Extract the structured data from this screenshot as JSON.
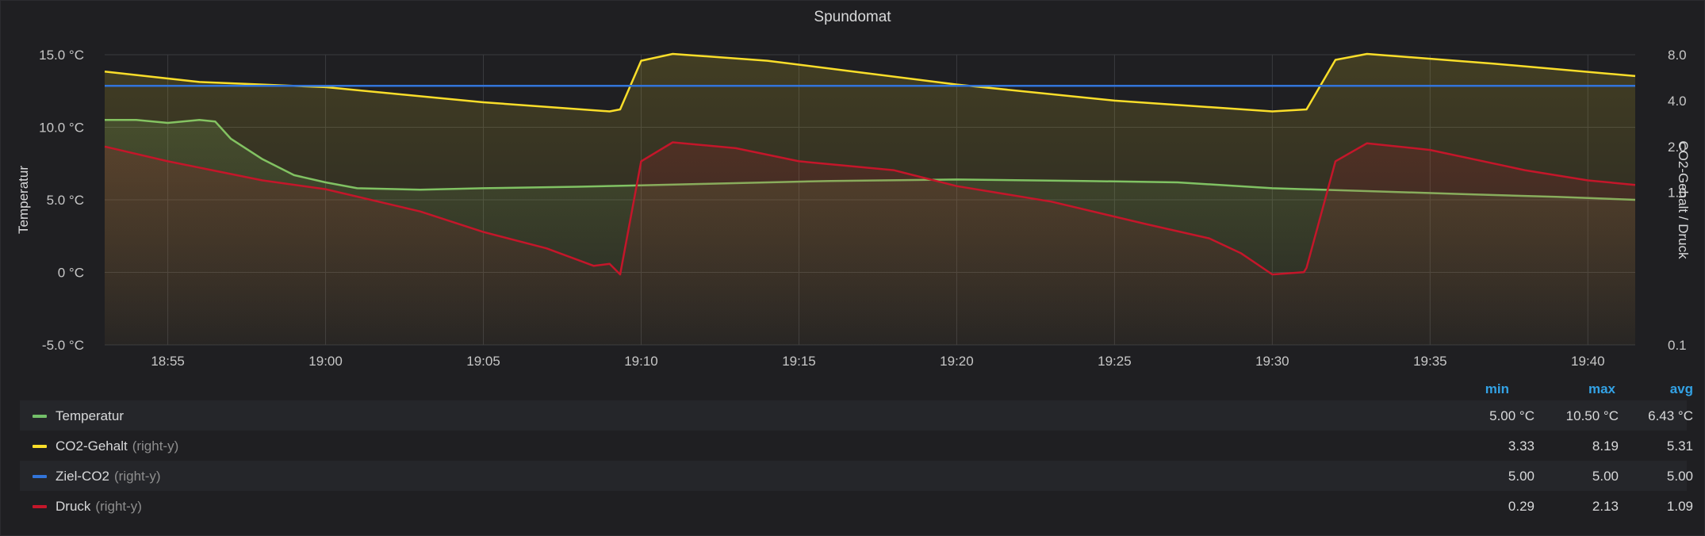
{
  "panel": {
    "title": "Spundomat"
  },
  "chart_data": {
    "type": "line",
    "title": "Spundomat",
    "x_range": [
      "18:53",
      "19:41:30"
    ],
    "x_ticks": [
      "18:55",
      "19:00",
      "19:05",
      "19:10",
      "19:15",
      "19:20",
      "19:25",
      "19:30",
      "19:35",
      "19:40"
    ],
    "y_left": {
      "label": "Temperatur",
      "range": [
        -5,
        15
      ],
      "ticks": [
        "15.0 °C",
        "10.0 °C",
        "5.0 °C",
        "0 °C",
        "-5.0 °C"
      ],
      "tick_values": [
        15,
        10,
        5,
        0,
        -5
      ]
    },
    "y_right": {
      "label": "CO2-Gehalt / Druck",
      "scale": "log",
      "range": [
        0.1,
        8
      ],
      "ticks": [
        "8.0",
        "4.0",
        "2.0",
        "1.0",
        "0.1"
      ],
      "tick_values": [
        8,
        4,
        2,
        1,
        0.1
      ]
    },
    "grid": true,
    "legend_placement": "bottom",
    "series": [
      {
        "name": "Temperatur",
        "axis": "left",
        "color": "#73bf69",
        "points": [
          [
            "18:53",
            10.5
          ],
          [
            "18:54",
            10.5
          ],
          [
            "18:55",
            10.3
          ],
          [
            "18:56",
            10.5
          ],
          [
            "18:56:30",
            10.4
          ],
          [
            "18:57",
            9.2
          ],
          [
            "18:58",
            7.8
          ],
          [
            "18:59",
            6.7
          ],
          [
            "19:00",
            6.2
          ],
          [
            "19:01",
            5.8
          ],
          [
            "19:03",
            5.7
          ],
          [
            "19:05",
            5.8
          ],
          [
            "19:08",
            5.9
          ],
          [
            "19:10",
            6.0
          ],
          [
            "19:12",
            6.1
          ],
          [
            "19:16",
            6.3
          ],
          [
            "19:20",
            6.4
          ],
          [
            "19:24",
            6.3
          ],
          [
            "19:27",
            6.2
          ],
          [
            "19:30",
            5.8
          ],
          [
            "19:33",
            5.6
          ],
          [
            "19:36",
            5.4
          ],
          [
            "19:39",
            5.2
          ],
          [
            "19:41:30",
            5.0
          ]
        ]
      },
      {
        "name": "CO2-Gehalt",
        "axis": "right",
        "color": "#fade2a",
        "points": [
          [
            "18:53",
            6.2
          ],
          [
            "18:56",
            5.3
          ],
          [
            "19:00",
            4.9
          ],
          [
            "19:05",
            3.9
          ],
          [
            "19:09",
            3.4
          ],
          [
            "19:09:20",
            3.5
          ],
          [
            "19:10",
            7.3
          ],
          [
            "19:11",
            8.1
          ],
          [
            "19:14",
            7.3
          ],
          [
            "19:17",
            6.1
          ],
          [
            "19:20",
            5.1
          ],
          [
            "19:25",
            4.0
          ],
          [
            "19:30",
            3.4
          ],
          [
            "19:31:05",
            3.5
          ],
          [
            "19:32",
            7.4
          ],
          [
            "19:33",
            8.1
          ],
          [
            "19:37",
            7.0
          ],
          [
            "19:41:30",
            5.8
          ]
        ]
      },
      {
        "name": "Ziel-CO2",
        "axis": "right",
        "color": "#3274d9",
        "points": [
          [
            "18:53",
            5.0
          ],
          [
            "19:41:30",
            5.0
          ]
        ]
      },
      {
        "name": "Druck",
        "axis": "right",
        "color": "#c4162a",
        "points": [
          [
            "18:53",
            2.0
          ],
          [
            "18:55",
            1.6
          ],
          [
            "18:58",
            1.2
          ],
          [
            "19:00",
            1.05
          ],
          [
            "19:03",
            0.75
          ],
          [
            "19:05",
            0.55
          ],
          [
            "19:07",
            0.43
          ],
          [
            "19:08:30",
            0.33
          ],
          [
            "19:09",
            0.34
          ],
          [
            "19:09:20",
            0.29
          ],
          [
            "19:10",
            1.6
          ],
          [
            "19:11",
            2.13
          ],
          [
            "19:13",
            1.95
          ],
          [
            "19:15",
            1.6
          ],
          [
            "19:18",
            1.4
          ],
          [
            "19:20",
            1.1
          ],
          [
            "19:23",
            0.87
          ],
          [
            "19:26",
            0.62
          ],
          [
            "19:28",
            0.5
          ],
          [
            "19:29",
            0.4
          ],
          [
            "19:30",
            0.29
          ],
          [
            "19:31",
            0.3
          ],
          [
            "19:31:05",
            0.32
          ],
          [
            "19:32",
            1.6
          ],
          [
            "19:33",
            2.1
          ],
          [
            "19:35",
            1.9
          ],
          [
            "19:38",
            1.4
          ],
          [
            "19:40",
            1.2
          ],
          [
            "19:41:30",
            1.12
          ]
        ]
      }
    ]
  },
  "legend": {
    "columns": [
      "min",
      "max",
      "avg"
    ],
    "rows": [
      {
        "name": "Temperatur",
        "axis_note": "",
        "color": "#73bf69",
        "min": "5.00 °C",
        "max": "10.50 °C",
        "avg": "6.43 °C"
      },
      {
        "name": "CO2-Gehalt",
        "axis_note": "(right-y)",
        "color": "#fade2a",
        "min": "3.33",
        "max": "8.19",
        "avg": "5.31"
      },
      {
        "name": "Ziel-CO2",
        "axis_note": "(right-y)",
        "color": "#3274d9",
        "min": "5.00",
        "max": "5.00",
        "avg": "5.00"
      },
      {
        "name": "Druck",
        "axis_note": "(right-y)",
        "color": "#c4162a",
        "min": "0.29",
        "max": "2.13",
        "avg": "1.09"
      }
    ]
  }
}
